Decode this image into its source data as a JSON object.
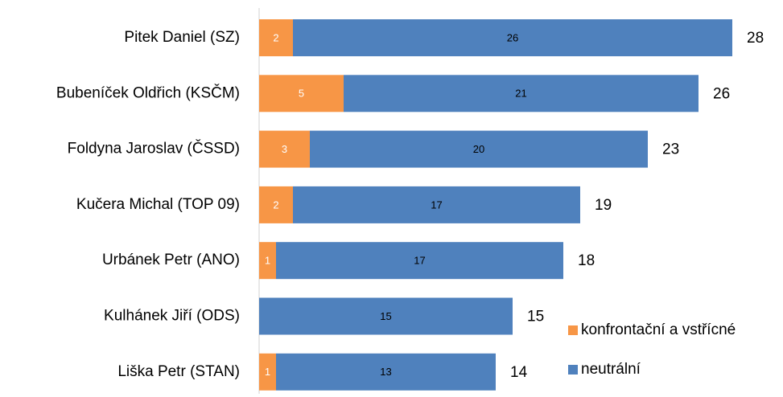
{
  "chart_data": {
    "type": "stacked-bar-horizontal",
    "categories": [
      "Pitek Daniel (SZ)",
      "Bubeníček Oldřich (KSČM)",
      "Foldyna Jaroslav (ČSSD)",
      "Kučera Michal (TOP 09)",
      "Urbánek Petr (ANO)",
      "Kulhánek Jiří (ODS)",
      "Liška Petr (STAN)"
    ],
    "series": [
      {
        "name": "konfrontační a vstřícné",
        "color": "#f79646",
        "values": [
          2,
          5,
          3,
          2,
          1,
          0,
          1
        ]
      },
      {
        "name": "neutrální",
        "color": "#4f81bd",
        "values": [
          26,
          21,
          20,
          17,
          17,
          15,
          13
        ]
      }
    ],
    "total_labels": [
      28,
      26,
      23,
      19,
      18,
      15,
      14
    ],
    "legend": "lower-right"
  }
}
